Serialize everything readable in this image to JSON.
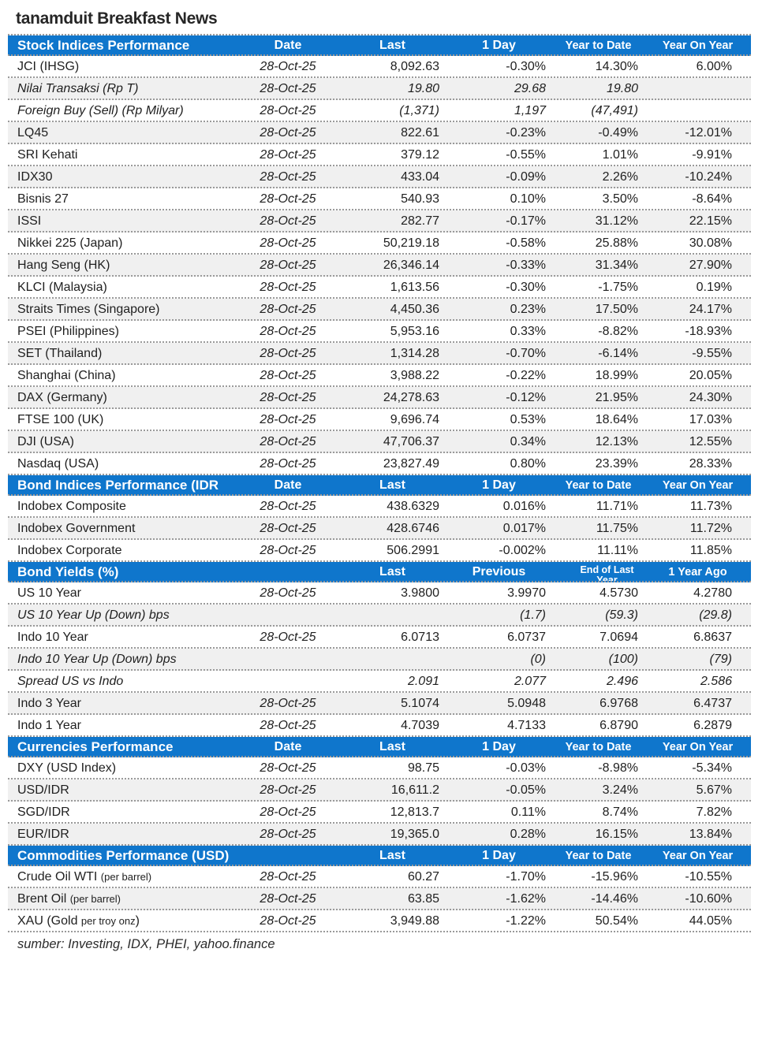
{
  "title": "tanamduit Breakfast News",
  "source_note": "sumber: Investing, IDX, PHEI, yahoo.finance",
  "colors": {
    "header_bg": "#0f76cc",
    "header_text": "#ffffff",
    "alt_row_bg": "#f0f0f0",
    "text": "#1f1f1f"
  },
  "sections": [
    {
      "id": "stock-indices",
      "title": "Stock Indices Performance",
      "columns": [
        "Date",
        "Last",
        "1 Day",
        "Year to Date",
        "Year On Year"
      ],
      "rows": [
        {
          "label": "JCI (IHSG)",
          "date": "28-Oct-25",
          "values": [
            "8,092.63",
            "-0.30%",
            "14.30%",
            "6.00%"
          ]
        },
        {
          "label": "Nilai Transaksi (Rp T)",
          "italic": true,
          "date": "28-Oct-25",
          "values": [
            "19.80",
            "29.68",
            "19.80",
            ""
          ]
        },
        {
          "label": "Foreign Buy (Sell) (Rp Milyar)",
          "italic": true,
          "date": "28-Oct-25",
          "values": [
            "(1,371)",
            "1,197",
            "(47,491)",
            ""
          ]
        },
        {
          "label": "LQ45",
          "date": "28-Oct-25",
          "values": [
            "822.61",
            "-0.23%",
            "-0.49%",
            "-12.01%"
          ]
        },
        {
          "label": "SRI Kehati",
          "date": "28-Oct-25",
          "values": [
            "379.12",
            "-0.55%",
            "1.01%",
            "-9.91%"
          ]
        },
        {
          "label": "IDX30",
          "date": "28-Oct-25",
          "values": [
            "433.04",
            "-0.09%",
            "2.26%",
            "-10.24%"
          ]
        },
        {
          "label": "Bisnis 27",
          "date": "28-Oct-25",
          "values": [
            "540.93",
            "0.10%",
            "3.50%",
            "-8.64%"
          ]
        },
        {
          "label": "ISSI",
          "date": "28-Oct-25",
          "values": [
            "282.77",
            "-0.17%",
            "31.12%",
            "22.15%"
          ]
        },
        {
          "label": "Nikkei 225 (Japan)",
          "date": "28-Oct-25",
          "values": [
            "50,219.18",
            "-0.58%",
            "25.88%",
            "30.08%"
          ]
        },
        {
          "label": "Hang Seng (HK)",
          "date": "28-Oct-25",
          "values": [
            "26,346.14",
            "-0.33%",
            "31.34%",
            "27.90%"
          ]
        },
        {
          "label": "KLCI (Malaysia)",
          "date": "28-Oct-25",
          "values": [
            "1,613.56",
            "-0.30%",
            "-1.75%",
            "0.19%"
          ]
        },
        {
          "label": "Straits Times (Singapore)",
          "date": "28-Oct-25",
          "values": [
            "4,450.36",
            "0.23%",
            "17.50%",
            "24.17%"
          ]
        },
        {
          "label": "PSEI (Philippines)",
          "date": "28-Oct-25",
          "values": [
            "5,953.16",
            "0.33%",
            "-8.82%",
            "-18.93%"
          ]
        },
        {
          "label": "SET (Thailand)",
          "date": "28-Oct-25",
          "values": [
            "1,314.28",
            "-0.70%",
            "-6.14%",
            "-9.55%"
          ]
        },
        {
          "label": "Shanghai (China)",
          "date": "28-Oct-25",
          "values": [
            "3,988.22",
            "-0.22%",
            "18.99%",
            "20.05%"
          ]
        },
        {
          "label": "DAX (Germany)",
          "date": "28-Oct-25",
          "values": [
            "24,278.63",
            "-0.12%",
            "21.95%",
            "24.30%"
          ]
        },
        {
          "label": "FTSE 100 (UK)",
          "date": "28-Oct-25",
          "values": [
            "9,696.74",
            "0.53%",
            "18.64%",
            "17.03%"
          ]
        },
        {
          "label": "DJI (USA)",
          "date": "28-Oct-25",
          "values": [
            "47,706.37",
            "0.34%",
            "12.13%",
            "12.55%"
          ]
        },
        {
          "label": "Nasdaq (USA)",
          "date": "28-Oct-25",
          "values": [
            "23,827.49",
            "0.80%",
            "23.39%",
            "28.33%"
          ]
        }
      ]
    },
    {
      "id": "bond-indices",
      "title": "Bond Indices Performance (IDR",
      "columns": [
        "Date",
        "Last",
        "1 Day",
        "Year to Date",
        "Year On Year"
      ],
      "rows": [
        {
          "label": "Indobex Composite",
          "date": "28-Oct-25",
          "values": [
            "438.6329",
            "0.016%",
            "11.71%",
            "11.73%"
          ]
        },
        {
          "label": "Indobex Government",
          "date": "28-Oct-25",
          "values": [
            "428.6746",
            "0.017%",
            "11.75%",
            "11.72%"
          ]
        },
        {
          "label": "Indobex Corporate",
          "date": "28-Oct-25",
          "values": [
            "506.2991",
            "-0.002%",
            "11.11%",
            "11.85%"
          ]
        }
      ]
    },
    {
      "id": "bond-yields",
      "title": "Bond Yields (%)",
      "columns": [
        "",
        "Last",
        "Previous",
        "End of Last Year",
        "1 Year Ago"
      ],
      "rows": [
        {
          "label": "US 10 Year",
          "date": "28-Oct-25",
          "values": [
            "3.9800",
            "3.9970",
            "4.5730",
            "4.2780"
          ]
        },
        {
          "label": "US 10 Year Up (Down) bps",
          "italic": true,
          "date": "",
          "values": [
            "",
            "(1.7)",
            "(59.3)",
            "(29.8)"
          ]
        },
        {
          "label": "Indo 10 Year",
          "date": "28-Oct-25",
          "values": [
            "6.0713",
            "6.0737",
            "7.0694",
            "6.8637"
          ]
        },
        {
          "label": "Indo 10 Year Up (Down) bps",
          "italic": true,
          "date": "",
          "values": [
            "",
            "(0)",
            "(100)",
            "(79)"
          ]
        },
        {
          "label": "Spread US vs Indo",
          "italic": true,
          "date": "",
          "values": [
            "2.091",
            "2.077",
            "2.496",
            "2.586"
          ]
        },
        {
          "label": "Indo 3 Year",
          "date": "28-Oct-25",
          "values": [
            "5.1074",
            "5.0948",
            "6.9768",
            "6.4737"
          ]
        },
        {
          "label": "Indo 1 Year",
          "date": "28-Oct-25",
          "values": [
            "4.7039",
            "4.7133",
            "6.8790",
            "6.2879"
          ]
        }
      ]
    },
    {
      "id": "currencies",
      "title": "Currencies Performance",
      "columns": [
        "Date",
        "Last",
        "1 Day",
        "Year to Date",
        "Year On Year"
      ],
      "rows": [
        {
          "label": "DXY (USD Index)",
          "date": "28-Oct-25",
          "values": [
            "98.75",
            "-0.03%",
            "-8.98%",
            "-5.34%"
          ]
        },
        {
          "label": "USD/IDR",
          "date": "28-Oct-25",
          "values": [
            "16,611.2",
            "-0.05%",
            "3.24%",
            "5.67%"
          ]
        },
        {
          "label": "SGD/IDR",
          "date": "28-Oct-25",
          "values": [
            "12,813.7",
            "0.11%",
            "8.74%",
            "7.82%"
          ]
        },
        {
          "label": "EUR/IDR",
          "date": "28-Oct-25",
          "values": [
            "19,365.0",
            "0.28%",
            "16.15%",
            "13.84%"
          ]
        }
      ]
    },
    {
      "id": "commodities",
      "title": "Commodities Performance (USD)",
      "columns": [
        "",
        "Last",
        "1 Day",
        "Year to Date",
        "Year On Year"
      ],
      "rows": [
        {
          "label": "Crude Oil WTI",
          "label_small": "(per barrel)",
          "date": "28-Oct-25",
          "values": [
            "60.27",
            "-1.70%",
            "-15.96%",
            "-10.55%"
          ]
        },
        {
          "label": "Brent Oil",
          "label_small": "(per barrel)",
          "date": "28-Oct-25",
          "values": [
            "63.85",
            "-1.62%",
            "-14.46%",
            "-10.60%"
          ]
        },
        {
          "label": "XAU (Gold",
          "label_small": "per troy onz",
          "label_post": ")",
          "date": "28-Oct-25",
          "values": [
            "3,949.88",
            "-1.22%",
            "50.54%",
            "44.05%"
          ]
        }
      ]
    }
  ]
}
